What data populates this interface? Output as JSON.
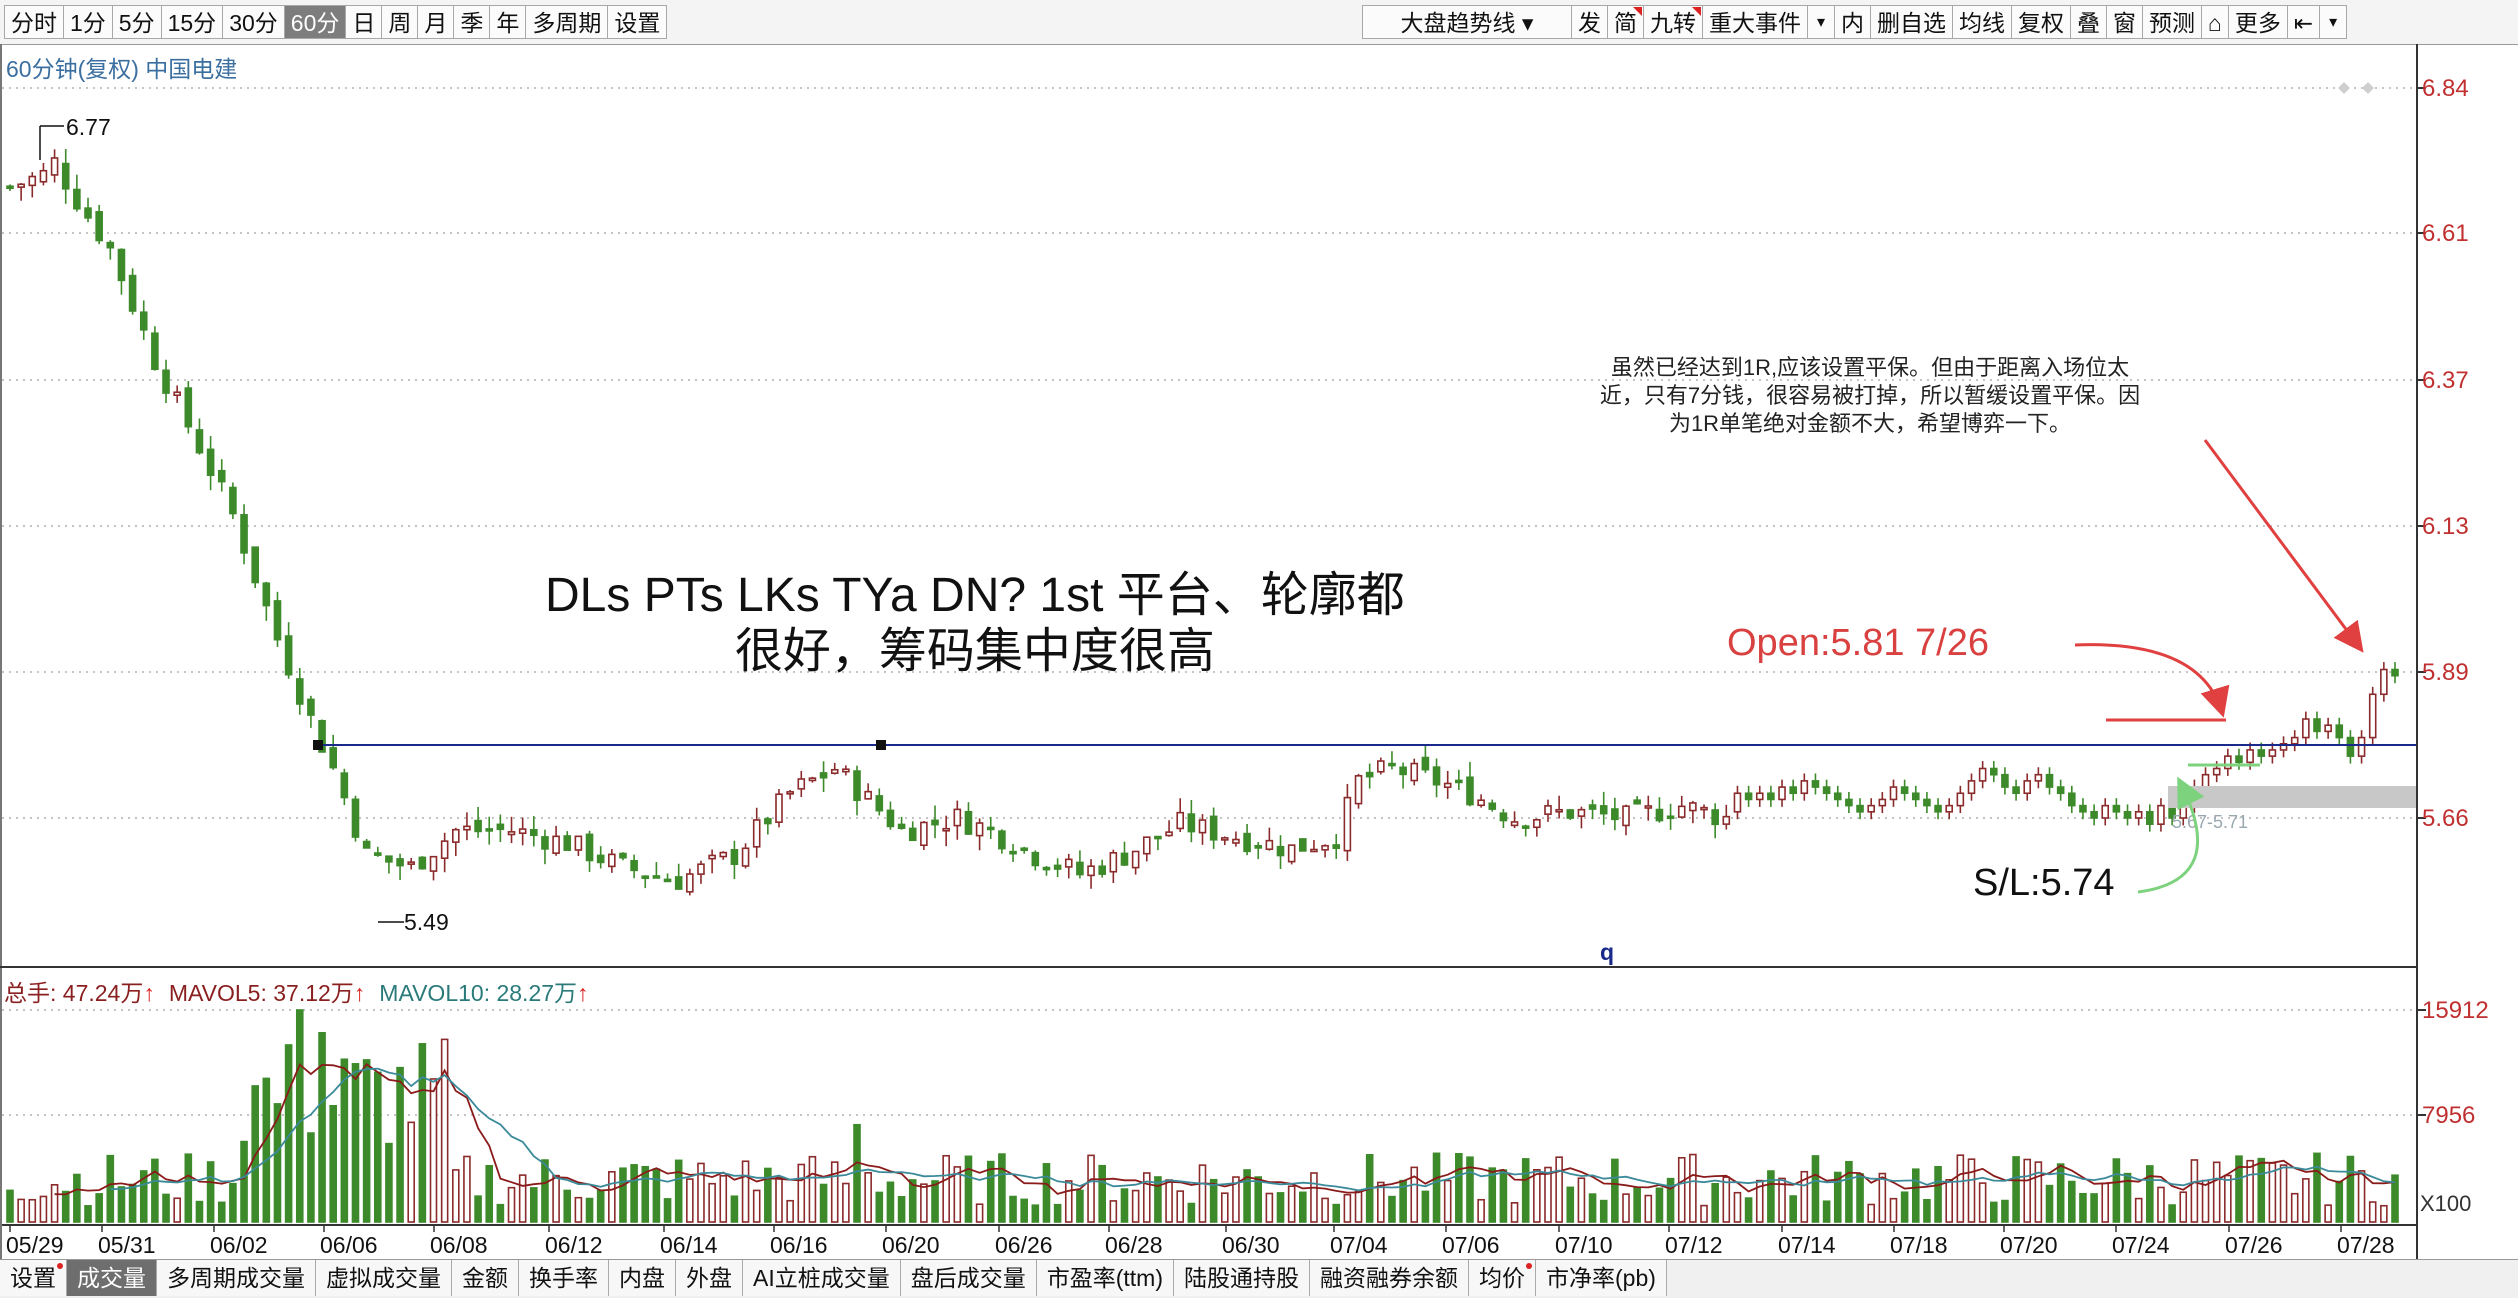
{
  "toolbar": {
    "left": [
      "分时",
      "1分",
      "5分",
      "15分",
      "30分",
      "60分",
      "日",
      "周",
      "月",
      "季",
      "年",
      "多周期",
      "设置"
    ],
    "active": "60分",
    "select_label": "大盘趋势线",
    "right": [
      {
        "label": "发",
        "flag": false
      },
      {
        "label": "简",
        "flag": true
      },
      {
        "label": "九转",
        "flag": true
      },
      {
        "label": "重大事件",
        "flag": false
      },
      {
        "label": "内",
        "flag": false
      },
      {
        "label": "删自选",
        "flag": false
      },
      {
        "label": "均线",
        "flag": false
      },
      {
        "label": "复权",
        "flag": false
      },
      {
        "label": "叠",
        "flag": false
      },
      {
        "label": "窗",
        "flag": false
      },
      {
        "label": "预测",
        "flag": false
      },
      {
        "label": "⌂",
        "flag": false
      },
      {
        "label": "更多",
        "flag": false
      },
      {
        "label": "⇤",
        "flag": false
      }
    ]
  },
  "chart": {
    "title": "60分钟(复权) 中国电建",
    "y_ticks": [
      "6.84",
      "6.61",
      "6.37",
      "6.13",
      "5.89",
      "5.66"
    ],
    "high_label": "6.77",
    "low_label": "5.49",
    "x_labels": [
      "05/29",
      "05/31",
      "06/02",
      "06/06",
      "06/08",
      "06/12",
      "06/14",
      "06/16",
      "06/20",
      "06/26",
      "06/28",
      "06/30",
      "07/04",
      "07/06",
      "07/10",
      "07/12",
      "07/14",
      "07/18",
      "07/20",
      "07/24",
      "07/26",
      "07/28"
    ],
    "marker_q": "q",
    "grey_band_label": "5.67-5.71"
  },
  "volume": {
    "total_label": "总手: 47.24万",
    "ma5_label": "MAVOL5: 37.12万",
    "ma10_label": "MAVOL10: 28.27万",
    "y_ticks": [
      "15912",
      "7956"
    ],
    "unit": "X100"
  },
  "annotations": {
    "main_line1": "DLs PTs LKs TYa  DN? 1st  平台、轮廓都",
    "main_line2": "很好，筹码集中度很高",
    "open": "Open:5.81   7/26",
    "sl": "S/L:5.74",
    "note": "虽然已经达到1R,应该设置平保。但由于距离入场位太近，只有7分钱，很容易被打掉，所以暂缓设置平保。因为1R单笔绝对金额不大，希望博弈一下。"
  },
  "bottom_tabs": [
    {
      "label": "设置",
      "flag": true
    },
    {
      "label": "成交量",
      "active": true
    },
    {
      "label": "多周期成交量"
    },
    {
      "label": "虚拟成交量"
    },
    {
      "label": "金额"
    },
    {
      "label": "换手率"
    },
    {
      "label": "内盘"
    },
    {
      "label": "外盘"
    },
    {
      "label": "AI立桩成交量"
    },
    {
      "label": "盘后成交量"
    },
    {
      "label": "市盈率(ttm)"
    },
    {
      "label": "陆股通持股"
    },
    {
      "label": "融资融券余额"
    },
    {
      "label": "均价",
      "flag": true
    },
    {
      "label": "市净率(pb)"
    }
  ],
  "colors": {
    "up": "#8b2a2a",
    "down": "#3c8a2a",
    "grid": "#b0b0b0",
    "hline": "#1a2a8a",
    "ma5": "#8b1a1a",
    "ma10": "#3a8a9a",
    "arrow_red": "#e04040",
    "arrow_green": "#7dd27d"
  }
}
